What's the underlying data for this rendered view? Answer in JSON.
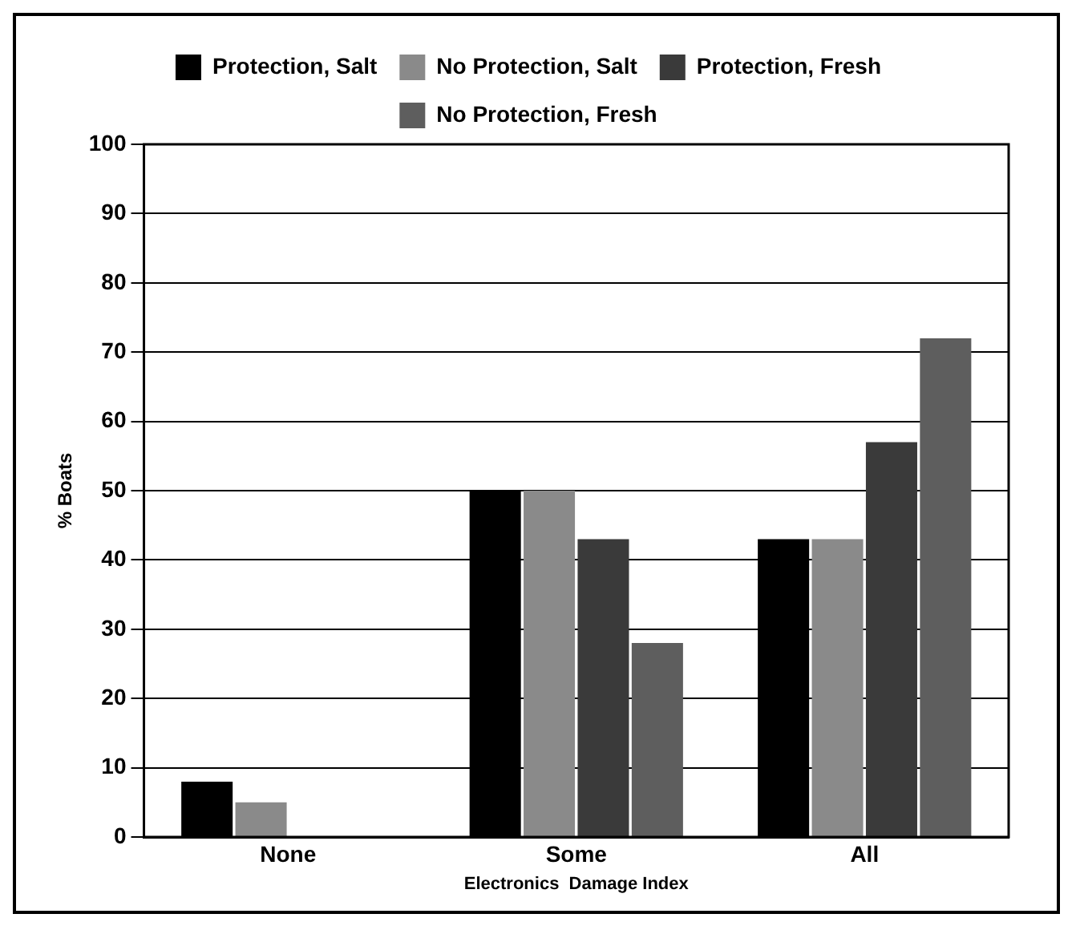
{
  "chart_data": {
    "type": "bar",
    "xlabel": "Electronics  Damage Index",
    "ylabel": "% Boats",
    "categories": [
      "None",
      "Some",
      "All"
    ],
    "series": [
      {
        "name": "Protection, Salt",
        "color": "#000000",
        "values": [
          8,
          50,
          43
        ]
      },
      {
        "name": "No Protection, Salt",
        "color": "#8a8a8a",
        "values": [
          5,
          50,
          43
        ]
      },
      {
        "name": "Protection, Fresh",
        "color": "#3a3a3a",
        "values": [
          0,
          43,
          57
        ]
      },
      {
        "name": "No Protection, Fresh",
        "color": "#5e5e5e",
        "values": [
          0,
          28,
          72
        ]
      }
    ],
    "ylim": [
      0,
      100
    ],
    "yticks": [
      0,
      10,
      20,
      30,
      40,
      50,
      60,
      70,
      80,
      90,
      100
    ],
    "grid": "y",
    "legend": "top"
  }
}
